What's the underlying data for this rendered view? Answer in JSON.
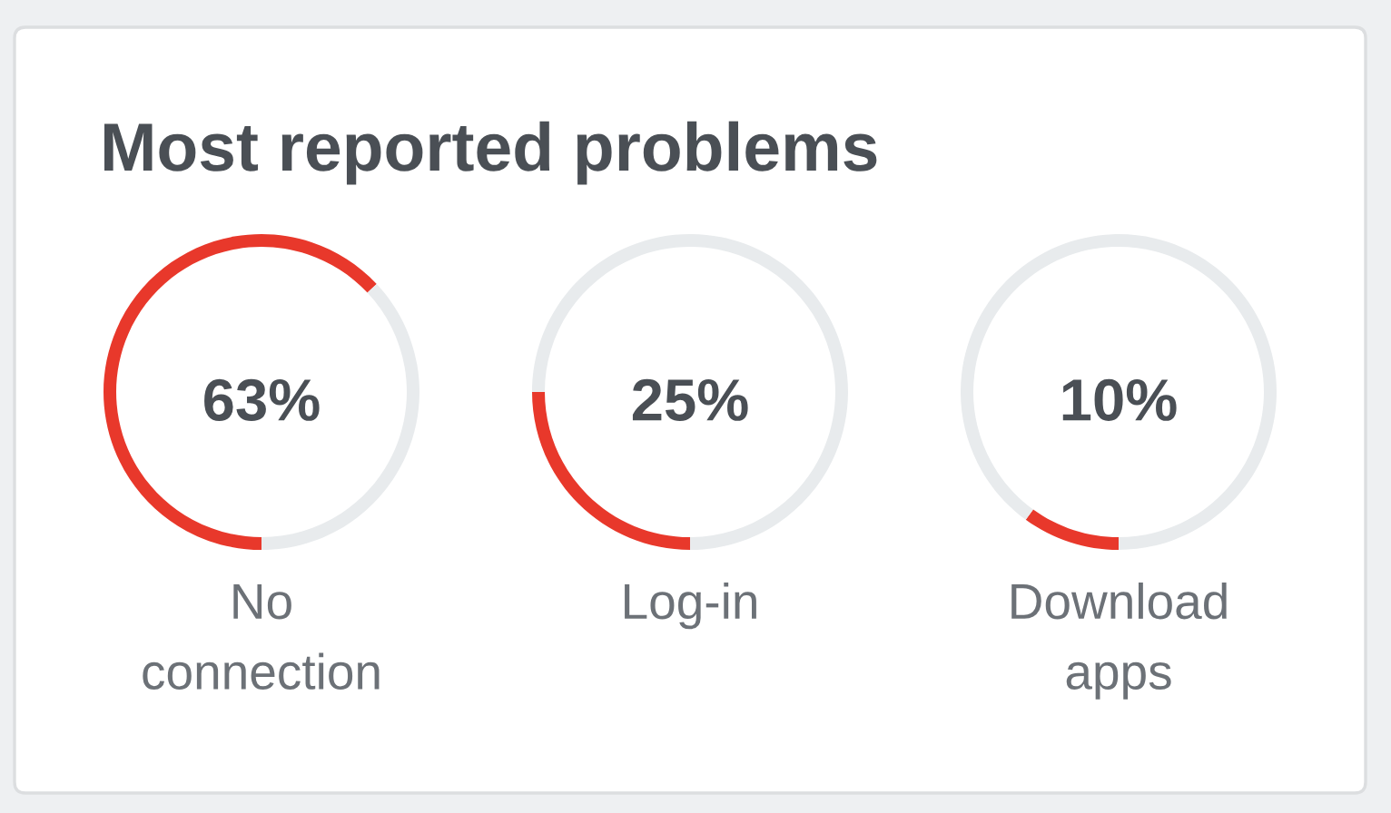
{
  "chart_data": [
    {
      "type": "donut",
      "title": "Most reported problems",
      "categories": [
        "No connection",
        null
      ],
      "values": [
        63,
        37
      ],
      "colors": [
        "#e8382b",
        "#e8ebed"
      ],
      "value_labels": [
        "63%",
        null
      ]
    },
    {
      "type": "donut",
      "categories": [
        "Log-in",
        null
      ],
      "values": [
        25,
        75
      ],
      "colors": [
        "#e8382b",
        "#e8ebed"
      ],
      "value_labels": [
        "25%",
        null
      ]
    },
    {
      "type": "donut",
      "categories": [
        "Download apps",
        null
      ],
      "values": [
        10,
        90
      ],
      "colors": [
        "#e8382b",
        "#e8ebed"
      ],
      "value_labels": [
        "10%",
        null
      ]
    }
  ]
}
